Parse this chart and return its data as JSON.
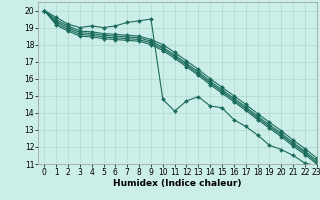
{
  "xlabel": "Humidex (Indice chaleur)",
  "bg_color": "#cceee8",
  "grid_color": "#b0d8d0",
  "line_color": "#1a6b5a",
  "xlim": [
    -0.5,
    23
  ],
  "ylim": [
    11,
    20.5
  ],
  "xticks": [
    0,
    1,
    2,
    3,
    4,
    5,
    6,
    7,
    8,
    9,
    10,
    11,
    12,
    13,
    14,
    15,
    16,
    17,
    18,
    19,
    20,
    21,
    22,
    23
  ],
  "yticks": [
    11,
    12,
    13,
    14,
    15,
    16,
    17,
    18,
    19,
    20
  ],
  "lines": [
    {
      "x": [
        0,
        1,
        2,
        3,
        4,
        5,
        6,
        7,
        8,
        9,
        10,
        11,
        12,
        13,
        14,
        15,
        16,
        17,
        18,
        19,
        20,
        21,
        22,
        23
      ],
      "y": [
        20.0,
        19.6,
        19.2,
        19.0,
        19.1,
        19.0,
        19.1,
        19.3,
        19.4,
        19.5,
        14.8,
        14.1,
        14.7,
        14.95,
        14.4,
        14.3,
        13.6,
        13.2,
        12.7,
        12.1,
        11.85,
        11.5,
        11.05,
        10.9
      ]
    },
    {
      "x": [
        0,
        1,
        2,
        3,
        4,
        5,
        6,
        7,
        8,
        9,
        10,
        11,
        12,
        13,
        14,
        15,
        16,
        17,
        18,
        19,
        20,
        21,
        22,
        23
      ],
      "y": [
        20.0,
        19.45,
        19.1,
        18.8,
        18.75,
        18.65,
        18.6,
        18.55,
        18.5,
        18.3,
        18.0,
        17.55,
        17.05,
        16.55,
        16.0,
        15.5,
        15.0,
        14.5,
        13.95,
        13.45,
        12.95,
        12.4,
        11.9,
        11.35
      ]
    },
    {
      "x": [
        0,
        1,
        2,
        3,
        4,
        5,
        6,
        7,
        8,
        9,
        10,
        11,
        12,
        13,
        14,
        15,
        16,
        17,
        18,
        19,
        20,
        21,
        22,
        23
      ],
      "y": [
        20.0,
        19.35,
        19.0,
        18.7,
        18.65,
        18.55,
        18.5,
        18.45,
        18.4,
        18.2,
        17.85,
        17.4,
        16.9,
        16.4,
        15.85,
        15.35,
        14.85,
        14.35,
        13.8,
        13.3,
        12.8,
        12.25,
        11.75,
        11.2
      ]
    },
    {
      "x": [
        0,
        1,
        2,
        3,
        4,
        5,
        6,
        7,
        8,
        9,
        10,
        11,
        12,
        13,
        14,
        15,
        16,
        17,
        18,
        19,
        20,
        21,
        22,
        23
      ],
      "y": [
        20.0,
        19.25,
        18.9,
        18.6,
        18.55,
        18.45,
        18.4,
        18.35,
        18.3,
        18.1,
        17.75,
        17.3,
        16.8,
        16.3,
        15.75,
        15.25,
        14.75,
        14.25,
        13.7,
        13.2,
        12.7,
        12.15,
        11.65,
        11.1
      ]
    },
    {
      "x": [
        0,
        1,
        2,
        3,
        4,
        5,
        6,
        7,
        8,
        9,
        10,
        11,
        12,
        13,
        14,
        15,
        16,
        17,
        18,
        19,
        20,
        21,
        22,
        23
      ],
      "y": [
        20.0,
        19.15,
        18.8,
        18.5,
        18.45,
        18.35,
        18.3,
        18.25,
        18.2,
        18.0,
        17.65,
        17.2,
        16.7,
        16.2,
        15.65,
        15.15,
        14.65,
        14.15,
        13.6,
        13.1,
        12.6,
        12.05,
        11.55,
        11.0
      ]
    }
  ],
  "marker": "D",
  "markersize": 2.0,
  "linewidth": 0.8,
  "xlabel_fontsize": 6.5,
  "tick_fontsize": 5.5
}
